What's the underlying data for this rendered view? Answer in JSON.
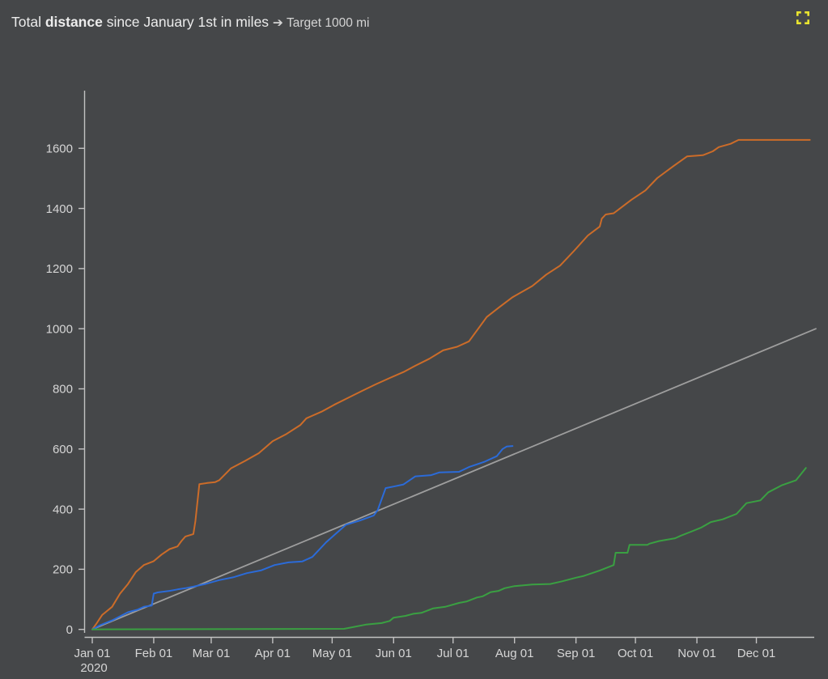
{
  "header": {
    "title_part1": "Total ",
    "title_bold": "distance",
    "title_part2": " since January 1st in miles ",
    "arrow": "➔",
    "title_target": " Target 1000 mi"
  },
  "colors": {
    "background": "#454749",
    "title_text": "#ececec",
    "axis_text": "#d6d6d6",
    "axis_line": "#c2c2c2",
    "fullscreen_icon": "#e9e42f",
    "series_orange": "#cc6c29",
    "series_blue": "#2b6bd9",
    "series_green": "#3aa042",
    "target_line": "#9e9e9e"
  },
  "chart_data": {
    "type": "line",
    "title": "Total distance since January 1st in miles ➔ Target 1000 mi",
    "xlabel": "",
    "ylabel": "",
    "legend": "none",
    "grid": false,
    "x_unit": "day-of-year 2020",
    "y_unit": "miles",
    "x_range_days": [
      0,
      365
    ],
    "y_range": [
      0,
      1790
    ],
    "y_axis": {
      "ticks": [
        0,
        200,
        400,
        600,
        800,
        1000,
        1200,
        1400,
        1600
      ]
    },
    "x_axis": {
      "ticks": [
        {
          "label": "Jan 01",
          "year": "2020",
          "day": 0
        },
        {
          "label": "Feb 01",
          "day": 31
        },
        {
          "label": "Mar 01",
          "day": 60
        },
        {
          "label": "Apr 01",
          "day": 91
        },
        {
          "label": "May 01",
          "day": 121
        },
        {
          "label": "Jun 01",
          "day": 152
        },
        {
          "label": "Jul 01",
          "day": 182
        },
        {
          "label": "Aug 01",
          "day": 213
        },
        {
          "label": "Sep 01",
          "day": 244
        },
        {
          "label": "Oct 01",
          "day": 274
        },
        {
          "label": "Nov 01",
          "day": 305
        },
        {
          "label": "Dec 01",
          "day": 335
        }
      ]
    },
    "target_line": {
      "name": "target-1000-mi",
      "label": "Target 1000 mi",
      "color": "#9e9e9e",
      "stroke_width": 1.8,
      "points": [
        [
          0,
          0
        ],
        [
          365,
          1000
        ]
      ]
    },
    "series": [
      {
        "name": "orange",
        "color": "#cc6c29",
        "stroke_width": 2,
        "points": [
          [
            0,
            0
          ],
          [
            2,
            18
          ],
          [
            5,
            48
          ],
          [
            10,
            75
          ],
          [
            14,
            119
          ],
          [
            18,
            151
          ],
          [
            22,
            191
          ],
          [
            26,
            214
          ],
          [
            31,
            227
          ],
          [
            35,
            249
          ],
          [
            39,
            267
          ],
          [
            43,
            276
          ],
          [
            45,
            294
          ],
          [
            47,
            309
          ],
          [
            51,
            317
          ],
          [
            52,
            360
          ],
          [
            54,
            483
          ],
          [
            58,
            487
          ],
          [
            62,
            490
          ],
          [
            64,
            496
          ],
          [
            70,
            536
          ],
          [
            77,
            560
          ],
          [
            84,
            586
          ],
          [
            91,
            626
          ],
          [
            98,
            650
          ],
          [
            105,
            680
          ],
          [
            108,
            702
          ],
          [
            116,
            725
          ],
          [
            122,
            747
          ],
          [
            129,
            770
          ],
          [
            136,
            793
          ],
          [
            143,
            815
          ],
          [
            150,
            836
          ],
          [
            157,
            856
          ],
          [
            163,
            877
          ],
          [
            170,
            900
          ],
          [
            177,
            928
          ],
          [
            184,
            940
          ],
          [
            190,
            958
          ],
          [
            199,
            1039
          ],
          [
            205,
            1070
          ],
          [
            212,
            1105
          ],
          [
            222,
            1142
          ],
          [
            229,
            1180
          ],
          [
            236,
            1210
          ],
          [
            243,
            1259
          ],
          [
            250,
            1310
          ],
          [
            256,
            1340
          ],
          [
            257,
            1366
          ],
          [
            259,
            1380
          ],
          [
            263,
            1384
          ],
          [
            272,
            1429
          ],
          [
            279,
            1460
          ],
          [
            285,
            1501
          ],
          [
            293,
            1540
          ],
          [
            300,
            1573
          ],
          [
            308,
            1577
          ],
          [
            313,
            1590
          ],
          [
            316,
            1604
          ],
          [
            322,
            1615
          ],
          [
            326,
            1628
          ],
          [
            362,
            1628
          ]
        ]
      },
      {
        "name": "blue",
        "color": "#2b6bd9",
        "stroke_width": 2,
        "points": [
          [
            0,
            0
          ],
          [
            4,
            14
          ],
          [
            10,
            30
          ],
          [
            18,
            57
          ],
          [
            23,
            66
          ],
          [
            26,
            75
          ],
          [
            30,
            79
          ],
          [
            31,
            119
          ],
          [
            33,
            123
          ],
          [
            39,
            128
          ],
          [
            43,
            133
          ],
          [
            47,
            137
          ],
          [
            51,
            142
          ],
          [
            57,
            151
          ],
          [
            64,
            164
          ],
          [
            71,
            173
          ],
          [
            78,
            187
          ],
          [
            85,
            196
          ],
          [
            92,
            214
          ],
          [
            99,
            223
          ],
          [
            106,
            226
          ],
          [
            111,
            241
          ],
          [
            118,
            290
          ],
          [
            124,
            325
          ],
          [
            128,
            348
          ],
          [
            135,
            362
          ],
          [
            142,
            379
          ],
          [
            144,
            397
          ],
          [
            148,
            470
          ],
          [
            152,
            475
          ],
          [
            157,
            482
          ],
          [
            163,
            509
          ],
          [
            171,
            513
          ],
          [
            175,
            522
          ],
          [
            185,
            524
          ],
          [
            190,
            540
          ],
          [
            198,
            558
          ],
          [
            204,
            576
          ],
          [
            207,
            600
          ],
          [
            209,
            608
          ],
          [
            212,
            610
          ]
        ]
      },
      {
        "name": "green",
        "color": "#3aa042",
        "stroke_width": 2,
        "points": [
          [
            0,
            0
          ],
          [
            127,
            2
          ],
          [
            138,
            16
          ],
          [
            146,
            21
          ],
          [
            150,
            28
          ],
          [
            152,
            39
          ],
          [
            158,
            45
          ],
          [
            162,
            52
          ],
          [
            166,
            55
          ],
          [
            172,
            70
          ],
          [
            178,
            75
          ],
          [
            185,
            88
          ],
          [
            189,
            93
          ],
          [
            194,
            106
          ],
          [
            197,
            110
          ],
          [
            201,
            124
          ],
          [
            205,
            128
          ],
          [
            208,
            137
          ],
          [
            213,
            144
          ],
          [
            222,
            149
          ],
          [
            231,
            151
          ],
          [
            237,
            160
          ],
          [
            244,
            172
          ],
          [
            248,
            178
          ],
          [
            256,
            196
          ],
          [
            263,
            214
          ],
          [
            264,
            255
          ],
          [
            270,
            255
          ],
          [
            271,
            281
          ],
          [
            280,
            281
          ],
          [
            281,
            285
          ],
          [
            286,
            294
          ],
          [
            294,
            303
          ],
          [
            297,
            312
          ],
          [
            302,
            325
          ],
          [
            307,
            338
          ],
          [
            312,
            357
          ],
          [
            318,
            366
          ],
          [
            325,
            384
          ],
          [
            330,
            420
          ],
          [
            337,
            429
          ],
          [
            341,
            456
          ],
          [
            348,
            480
          ],
          [
            355,
            496
          ],
          [
            360,
            537
          ]
        ]
      }
    ]
  }
}
